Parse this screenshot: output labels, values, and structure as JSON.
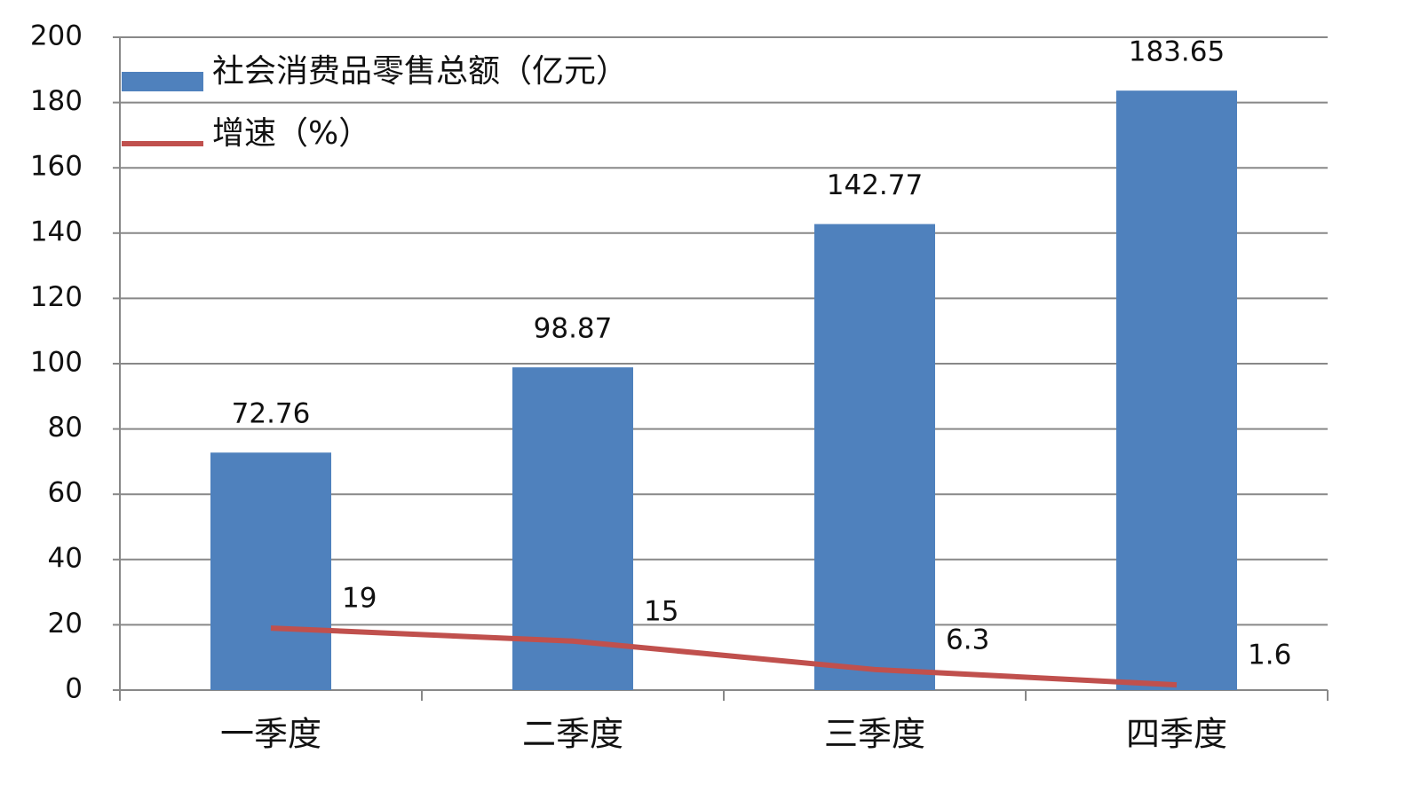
{
  "chart_data": {
    "type": "bar",
    "categories": [
      "一季度",
      "二季度",
      "三季度",
      "四季度"
    ],
    "series": [
      {
        "name": "社会消费品零售总额（亿元）",
        "type": "bar",
        "color": "#4f81bd",
        "values": [
          72.76,
          98.87,
          142.77,
          183.65
        ]
      },
      {
        "name": "增速（%）",
        "type": "line",
        "color": "#c0504d",
        "values": [
          19,
          15,
          6.3,
          1.6
        ]
      }
    ],
    "ylim": [
      0,
      200
    ],
    "yticks": [
      0,
      20,
      40,
      60,
      80,
      100,
      120,
      140,
      160,
      180,
      200
    ],
    "grid": true,
    "legend": "top-left",
    "data_labels": true
  }
}
